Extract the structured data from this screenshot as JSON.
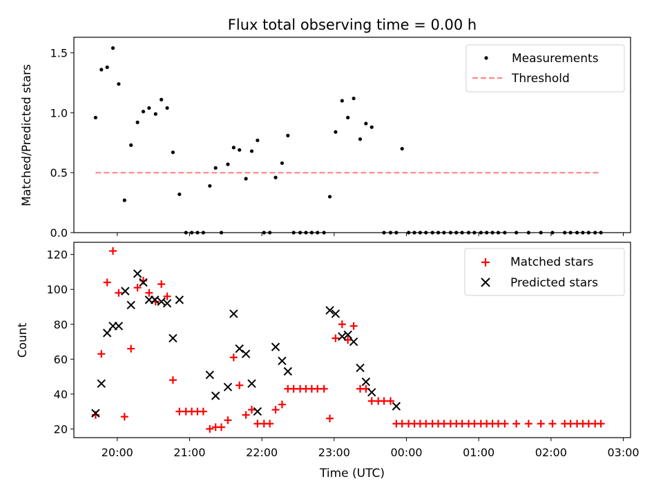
{
  "colors": {
    "measurements": "#000000",
    "threshold": "#ff7f7f",
    "matched": "#ff0000",
    "predicted": "#000000"
  },
  "chart_data": [
    {
      "type": "scatter",
      "title": "Flux total observing time = 0.00 h",
      "xlabel": "",
      "ylabel": "Matched/Predicted stars",
      "xlim": [
        19.4,
        27.1
      ],
      "ylim": [
        0,
        1.63
      ],
      "grid": false,
      "legend": "top-right",
      "x_tick_values": [
        20,
        21,
        22,
        23,
        24,
        25,
        26,
        27
      ],
      "y_ticks": [
        0.0,
        0.5,
        1.0,
        1.5
      ],
      "y_tick_labels": [
        "0.0",
        "0.5",
        "1.0",
        "1.5"
      ],
      "legend_labels": {
        "measurements": "Measurements",
        "threshold": "Threshold"
      },
      "threshold": {
        "x": [
          19.7,
          26.67
        ],
        "y": 0.5
      },
      "measurements": {
        "x": [
          19.7,
          19.78,
          19.86,
          19.94,
          20.02,
          20.1,
          20.19,
          20.28,
          20.36,
          20.44,
          20.53,
          20.61,
          20.69,
          20.77,
          20.86,
          20.95,
          21.03,
          21.11,
          21.19,
          21.28,
          21.36,
          21.44,
          21.53,
          21.61,
          21.69,
          21.78,
          21.86,
          21.94,
          22.03,
          22.11,
          22.19,
          22.28,
          22.36,
          22.44,
          22.53,
          22.61,
          22.69,
          22.77,
          22.86,
          22.94,
          23.02,
          23.11,
          23.19,
          23.27,
          23.36,
          23.44,
          23.52,
          23.69,
          23.78,
          23.86,
          23.94,
          24.03,
          24.11,
          24.19,
          24.27,
          24.36,
          24.44,
          24.52,
          24.61,
          24.69,
          24.77,
          24.86,
          24.94,
          25.03,
          25.11,
          25.19,
          25.27,
          25.36,
          25.52,
          25.69,
          25.86,
          26.02,
          26.19,
          26.27,
          26.36,
          26.44,
          26.52,
          26.61,
          26.69
        ],
        "y": [
          0.96,
          1.36,
          1.38,
          1.54,
          1.24,
          0.27,
          0.73,
          0.92,
          1.01,
          1.04,
          0.99,
          1.11,
          1.04,
          0.67,
          0.32,
          0,
          0,
          0,
          0,
          0.39,
          0.54,
          0,
          0.57,
          0.71,
          0.69,
          0.45,
          0.68,
          0.77,
          0,
          0,
          0.46,
          0.58,
          0.81,
          0,
          0,
          0,
          0,
          0,
          0,
          0.3,
          0.84,
          1.1,
          0.96,
          1.12,
          0.78,
          0.91,
          0.88,
          0,
          0,
          0,
          0.7,
          0,
          0,
          0,
          0,
          0,
          0,
          0,
          0,
          0,
          0,
          0,
          0,
          0,
          0,
          0,
          0,
          0,
          0,
          0,
          0,
          0,
          0,
          0,
          0,
          0,
          0,
          0,
          0
        ]
      }
    },
    {
      "type": "scatter",
      "title": "",
      "xlabel": "Time (UTC)",
      "ylabel": "Count",
      "xlim": [
        19.4,
        27.1
      ],
      "ylim": [
        15,
        127
      ],
      "grid": false,
      "legend": "top-right",
      "x_tick_values": [
        20,
        21,
        22,
        23,
        24,
        25,
        26,
        27
      ],
      "x_tick_labels": [
        "20:00",
        "21:00",
        "22:00",
        "23:00",
        "00:00",
        "01:00",
        "02:00",
        "03:00"
      ],
      "y_ticks": [
        20,
        40,
        60,
        80,
        100,
        120
      ],
      "y_tick_labels": [
        "20",
        "40",
        "60",
        "80",
        "100",
        "120"
      ],
      "series": [
        {
          "name": "Matched stars",
          "x": [
            19.7,
            19.78,
            19.86,
            19.94,
            20.02,
            20.1,
            20.19,
            20.28,
            20.36,
            20.44,
            20.53,
            20.61,
            20.69,
            20.77,
            20.86,
            20.95,
            21.03,
            21.11,
            21.19,
            21.28,
            21.36,
            21.44,
            21.53,
            21.61,
            21.69,
            21.78,
            21.86,
            21.94,
            22.03,
            22.11,
            22.19,
            22.28,
            22.36,
            22.44,
            22.53,
            22.61,
            22.69,
            22.77,
            22.86,
            22.94,
            23.02,
            23.11,
            23.19,
            23.27,
            23.36,
            23.44,
            23.52,
            23.61,
            23.69,
            23.78,
            23.86,
            23.94,
            24.03,
            24.11,
            24.19,
            24.27,
            24.36,
            24.44,
            24.52,
            24.61,
            24.69,
            24.77,
            24.86,
            24.94,
            25.03,
            25.11,
            25.19,
            25.27,
            25.36,
            25.52,
            25.69,
            25.86,
            26.02,
            26.19,
            26.27,
            26.36,
            26.44,
            26.52,
            26.61,
            26.69
          ],
          "y": [
            28,
            63,
            104,
            122,
            98,
            27,
            66,
            101,
            105,
            98,
            93,
            103,
            96,
            48,
            30,
            30,
            30,
            30,
            30,
            20,
            21,
            21,
            25,
            61,
            45,
            28,
            31,
            23,
            23,
            23,
            31,
            34,
            43,
            43,
            43,
            43,
            43,
            43,
            43,
            26,
            72,
            80,
            71,
            79,
            43,
            43,
            36,
            36,
            36,
            36,
            23,
            23,
            23,
            23,
            23,
            23,
            23,
            23,
            23,
            23,
            23,
            23,
            23,
            23,
            23,
            23,
            23,
            23,
            23,
            23,
            23,
            23,
            23,
            23,
            23,
            23,
            23,
            23,
            23,
            23
          ]
        },
        {
          "name": "Predicted stars",
          "x": [
            19.7,
            19.78,
            19.86,
            19.94,
            20.02,
            20.11,
            20.19,
            20.28,
            20.36,
            20.44,
            20.52,
            20.61,
            20.69,
            20.77,
            20.86,
            21.28,
            21.36,
            21.53,
            21.61,
            21.69,
            21.78,
            21.86,
            21.94,
            22.19,
            22.28,
            22.36,
            22.94,
            23.02,
            23.11,
            23.19,
            23.27,
            23.36,
            23.44,
            23.52,
            23.86
          ],
          "y": [
            29,
            46,
            75,
            79,
            79,
            99,
            91,
            109,
            104,
            94,
            94,
            93,
            92,
            72,
            94,
            51,
            39,
            44,
            86,
            66,
            63,
            46,
            30,
            67,
            59,
            53,
            88,
            86,
            73,
            74,
            70,
            55,
            47,
            41,
            33
          ]
        }
      ]
    }
  ]
}
